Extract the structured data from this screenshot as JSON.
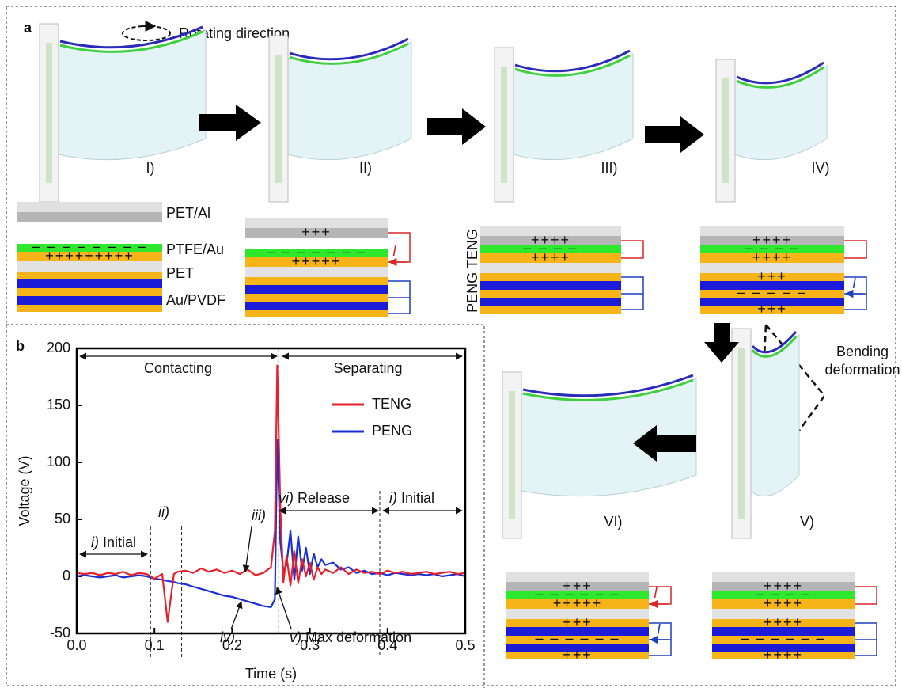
{
  "figure_a": {
    "label": "a",
    "rotating_direction": "Rotating direction",
    "step_labels": [
      "I)",
      "II)",
      "III)",
      "IV)",
      "V)",
      "VI)"
    ],
    "layer_legend": [
      "PET/Al",
      "PTFE/Au",
      "PET",
      "Au/PVDF"
    ],
    "stack_label": "PENG TENG",
    "bending": [
      "Bending",
      "deformation"
    ],
    "stacks": [
      {
        "ptfe": "– – – – – – – –",
        "au": "+++++++++"
      },
      {
        "al": "+++",
        "ptfe": "– – – – – – –",
        "au": "+++++",
        "i_teng": "I"
      },
      {
        "al": "++++",
        "ptfe": "– – – –",
        "au": "++++"
      },
      {
        "al": "++++",
        "ptfe": "– – – –",
        "au": "++++",
        "peng_top": "+++",
        "peng_mid": "– – – – –",
        "peng_bottom": "+++",
        "i_peng": "I"
      },
      {
        "al": "+++",
        "ptfe": "– – – – – –",
        "au": "+++++",
        "peng_top": "+++",
        "peng_mid": "– – – – – –",
        "peng_bottom": "+++",
        "i_teng": "I",
        "i_peng": "I"
      },
      {
        "al": "++++",
        "ptfe": "– – – –",
        "au": "++++",
        "peng_top": "++++",
        "peng_mid": "– – – – – –",
        "peng_bottom": "++++"
      }
    ]
  },
  "chart_data": {
    "type": "line",
    "panel_label": "b",
    "x_label": "Time (s)",
    "y_label": "Voltage (V)",
    "x": [
      0,
      0.01,
      0.02,
      0.03,
      0.04,
      0.05,
      0.06,
      0.07,
      0.08,
      0.09,
      0.1,
      0.11,
      0.117,
      0.125,
      0.13,
      0.14,
      0.15,
      0.16,
      0.17,
      0.18,
      0.19,
      0.2,
      0.21,
      0.22,
      0.23,
      0.24,
      0.25,
      0.255,
      0.258,
      0.262,
      0.266,
      0.27,
      0.275,
      0.28,
      0.285,
      0.29,
      0.295,
      0.3,
      0.305,
      0.31,
      0.315,
      0.32,
      0.33,
      0.34,
      0.35,
      0.36,
      0.37,
      0.38,
      0.39,
      0.4,
      0.41,
      0.42,
      0.43,
      0.44,
      0.45,
      0.46,
      0.47,
      0.48,
      0.49,
      0.5
    ],
    "series": [
      {
        "name": "TENG",
        "color": "#e8202a",
        "values": [
          3,
          2,
          3,
          1,
          3,
          2,
          4,
          1,
          3,
          2,
          -2,
          2,
          -40,
          2,
          4,
          5,
          3,
          7,
          4,
          6,
          3,
          5,
          2,
          6,
          1,
          3,
          8,
          40,
          185,
          60,
          -5,
          18,
          -8,
          22,
          -6,
          15,
          0,
          12,
          -3,
          8,
          2,
          6,
          3,
          8,
          2,
          6,
          3,
          4,
          2,
          5,
          3,
          4,
          2,
          3,
          4,
          2,
          3,
          4,
          2,
          3
        ]
      },
      {
        "name": "PENG",
        "color": "#1a2fd6",
        "values": [
          0,
          1,
          0,
          -1,
          0,
          1,
          -1,
          0,
          1,
          0,
          -2,
          -3,
          -4,
          -5,
          -6,
          -7,
          -9,
          -11,
          -13,
          -15,
          -17,
          -18,
          -20,
          -22,
          -24,
          -26,
          -27,
          -20,
          120,
          30,
          5,
          10,
          40,
          -3,
          35,
          5,
          25,
          2,
          20,
          8,
          15,
          10,
          12,
          6,
          8,
          3,
          5,
          2,
          3,
          1,
          3,
          2,
          1,
          2,
          1,
          2,
          0,
          1,
          2,
          0
        ]
      }
    ],
    "xlim": [
      0,
      0.5
    ],
    "ylim": [
      -50,
      200
    ],
    "xticks": [
      {
        "value": 0,
        "label": "0.0"
      },
      0.1,
      0.2,
      0.3,
      0.4,
      0.5
    ],
    "yticks": [
      -50,
      0,
      50,
      100,
      150,
      200
    ],
    "phase_boundaries": [
      0.095,
      0.135,
      0.26,
      0.39
    ],
    "spans": [
      "Contacting",
      "Separating"
    ],
    "annotations": [
      {
        "numeral": "i)",
        "text": "Initial"
      },
      {
        "numeral": "ii)"
      },
      {
        "numeral": "iii)"
      },
      {
        "numeral": "iv)"
      },
      {
        "numeral": "v)",
        "text": "Max deformation"
      },
      {
        "numeral": "vi)",
        "text": "Release"
      },
      {
        "numeral": "i)",
        "text": "Initial"
      }
    ]
  }
}
